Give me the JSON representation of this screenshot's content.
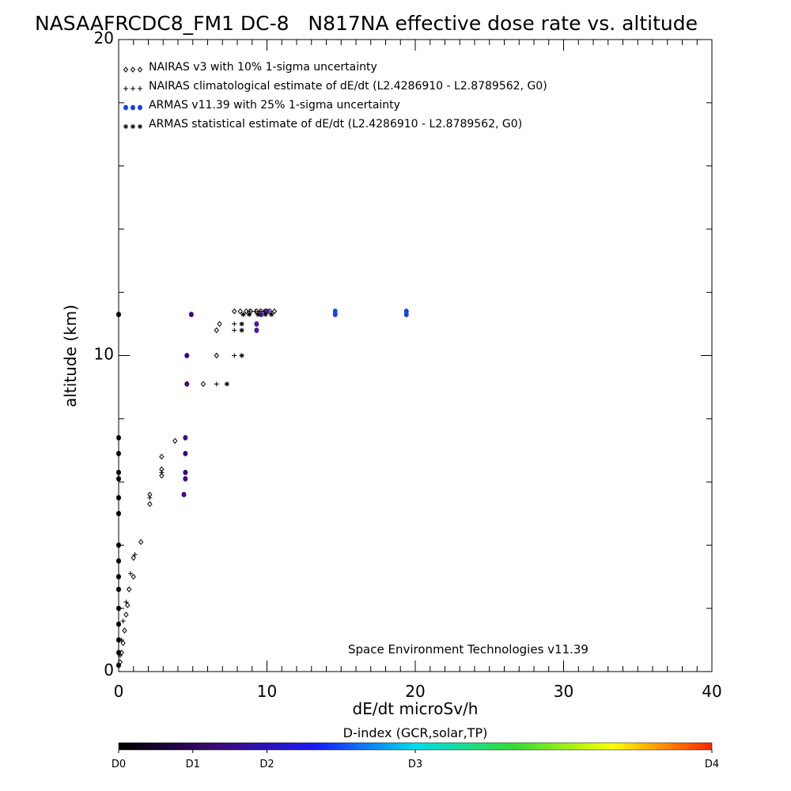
{
  "chart_data": {
    "type": "scatter",
    "title": "NASAAFRCDC8_FM1 DC-8   N817NA effective dose rate vs. altitude",
    "xlabel": "dE/dt microSv/h",
    "ylabel": "altitude (km)",
    "xlim": [
      0,
      40
    ],
    "ylim": [
      0,
      20
    ],
    "x_ticks": [
      "0",
      "10",
      "20",
      "30",
      "40"
    ],
    "y_ticks": [
      "0",
      "10",
      "20"
    ],
    "legend_placement": "top-left",
    "annotation": "Space Environment Technologies v11.39",
    "series": [
      {
        "name": "NAIRAS v3 with 10% 1-sigma uncertainty",
        "marker": "diamond",
        "color": "#000000",
        "points": [
          [
            0.1,
            0.3
          ],
          [
            0.2,
            0.6
          ],
          [
            0.3,
            0.9
          ],
          [
            0.4,
            1.3
          ],
          [
            0.5,
            1.8
          ],
          [
            0.6,
            2.1
          ],
          [
            0.7,
            2.6
          ],
          [
            1.0,
            3.0
          ],
          [
            1.0,
            3.6
          ],
          [
            1.5,
            4.1
          ],
          [
            2.1,
            5.3
          ],
          [
            2.1,
            5.6
          ],
          [
            2.9,
            6.2
          ],
          [
            2.9,
            6.4
          ],
          [
            2.9,
            6.8
          ],
          [
            3.8,
            7.3
          ],
          [
            5.7,
            9.1
          ],
          [
            6.6,
            10.0
          ],
          [
            6.6,
            10.8
          ],
          [
            6.8,
            11.0
          ],
          [
            7.8,
            11.4
          ],
          [
            8.2,
            11.4
          ],
          [
            8.6,
            11.4
          ],
          [
            8.9,
            11.4
          ],
          [
            9.3,
            11.4
          ],
          [
            9.6,
            11.4
          ],
          [
            9.9,
            11.4
          ],
          [
            10.2,
            11.4
          ],
          [
            10.5,
            11.4
          ]
        ]
      },
      {
        "name": "NAIRAS climatological estimate of dE/dt (L2.4286910 - L2.8789562, G0)",
        "marker": "plus",
        "color": "#000000",
        "points": [
          [
            0.1,
            0.5
          ],
          [
            0.2,
            1.0
          ],
          [
            0.3,
            1.6
          ],
          [
            0.5,
            2.2
          ],
          [
            0.8,
            3.1
          ],
          [
            1.1,
            3.7
          ],
          [
            2.1,
            5.5
          ],
          [
            2.9,
            6.3
          ],
          [
            6.6,
            9.1
          ],
          [
            7.8,
            10.0
          ],
          [
            7.8,
            10.8
          ],
          [
            7.8,
            11.0
          ],
          [
            8.8,
            11.4
          ],
          [
            9.2,
            11.4
          ],
          [
            9.5,
            11.4
          ],
          [
            9.8,
            11.4
          ],
          [
            10.1,
            11.4
          ]
        ]
      },
      {
        "name": "ARMAS v11.39 with 25% 1-sigma uncertainty",
        "marker": "filled-circle",
        "color": "#1a35d8",
        "points": [
          [
            0.0,
            0.2
          ],
          [
            0.0,
            0.6
          ],
          [
            0.0,
            1.0
          ],
          [
            0.0,
            1.5
          ],
          [
            0.0,
            2.0
          ],
          [
            0.0,
            2.6
          ],
          [
            0.0,
            3.0
          ],
          [
            0.0,
            3.5
          ],
          [
            0.0,
            4.0
          ],
          [
            0.0,
            5.0
          ],
          [
            0.0,
            5.5
          ],
          [
            0.0,
            6.1
          ],
          [
            0.0,
            6.3
          ],
          [
            0.0,
            6.9
          ],
          [
            0.0,
            7.4
          ],
          [
            0.0,
            11.3
          ],
          [
            4.4,
            5.6
          ],
          [
            4.5,
            6.1
          ],
          [
            4.5,
            6.3
          ],
          [
            4.5,
            6.9
          ],
          [
            4.5,
            7.4
          ],
          [
            4.6,
            9.1
          ],
          [
            4.6,
            10.0
          ],
          [
            4.9,
            11.3
          ],
          [
            9.3,
            10.8
          ],
          [
            9.3,
            11.0
          ],
          [
            9.6,
            11.3
          ],
          [
            10.0,
            11.4
          ],
          [
            14.6,
            11.3
          ],
          [
            14.6,
            11.4
          ],
          [
            19.4,
            11.3
          ],
          [
            19.4,
            11.4
          ]
        ]
      },
      {
        "name": "ARMAS statistical estimate of dE/dt (L2.4286910 - L2.8789562, G0)",
        "marker": "asterisk",
        "color": "#000000",
        "points": [
          [
            7.3,
            9.1
          ],
          [
            8.3,
            10.0
          ],
          [
            8.3,
            10.8
          ],
          [
            8.3,
            11.0
          ],
          [
            8.4,
            11.3
          ],
          [
            8.8,
            11.3
          ],
          [
            9.4,
            11.3
          ],
          [
            9.9,
            11.3
          ],
          [
            10.3,
            11.3
          ]
        ]
      }
    ],
    "colorbar": {
      "title": "D-index (GCR,solar,TP)",
      "labels": [
        "D0",
        "D1",
        "D2",
        "D3",
        "D4"
      ],
      "colors": [
        "#000000",
        "#3c0a78",
        "#1a1aff",
        "#00ddee",
        "#33dd33",
        "#ffff00",
        "#ff2200"
      ]
    }
  }
}
